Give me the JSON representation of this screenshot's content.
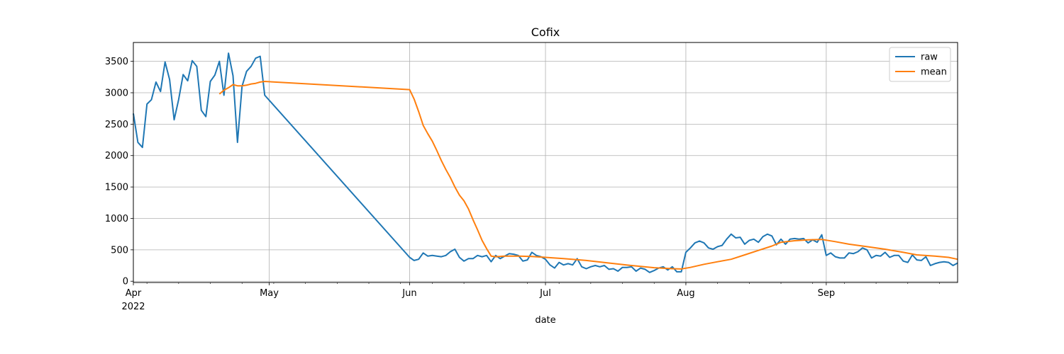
{
  "chart_data": {
    "type": "line",
    "title": "Cofix",
    "xlabel": "date",
    "ylabel": "",
    "xlim": [
      "2022-04-01",
      "2022-09-30"
    ],
    "ylim": [
      -20,
      3800
    ],
    "grid": true,
    "legend": "top-right",
    "x_ticks": [
      {
        "date": "2022-04-01",
        "label": "Apr",
        "sublabel": "2022"
      },
      {
        "date": "2022-05-01",
        "label": "May"
      },
      {
        "date": "2022-06-01",
        "label": "Jun"
      },
      {
        "date": "2022-07-01",
        "label": "Jul"
      },
      {
        "date": "2022-08-01",
        "label": "Aug"
      },
      {
        "date": "2022-09-01",
        "label": "Sep"
      }
    ],
    "y_ticks": [
      0,
      500,
      1000,
      1500,
      2000,
      2500,
      3000,
      3500
    ],
    "series": [
      {
        "name": "raw",
        "color": "#1f77b4",
        "points": [
          [
            "2022-04-01",
            2670
          ],
          [
            "2022-04-02",
            2210
          ],
          [
            "2022-04-03",
            2130
          ],
          [
            "2022-04-04",
            2820
          ],
          [
            "2022-04-05",
            2890
          ],
          [
            "2022-04-06",
            3170
          ],
          [
            "2022-04-07",
            3020
          ],
          [
            "2022-04-08",
            3490
          ],
          [
            "2022-04-09",
            3210
          ],
          [
            "2022-04-10",
            2570
          ],
          [
            "2022-04-11",
            2890
          ],
          [
            "2022-04-12",
            3290
          ],
          [
            "2022-04-13",
            3190
          ],
          [
            "2022-04-14",
            3510
          ],
          [
            "2022-04-15",
            3420
          ],
          [
            "2022-04-16",
            2720
          ],
          [
            "2022-04-17",
            2620
          ],
          [
            "2022-04-18",
            3180
          ],
          [
            "2022-04-19",
            3280
          ],
          [
            "2022-04-20",
            3500
          ],
          [
            "2022-04-21",
            2960
          ],
          [
            "2022-04-22",
            3630
          ],
          [
            "2022-04-23",
            3270
          ],
          [
            "2022-04-24",
            2210
          ],
          [
            "2022-04-25",
            3100
          ],
          [
            "2022-04-26",
            3340
          ],
          [
            "2022-04-27",
            3420
          ],
          [
            "2022-04-28",
            3550
          ],
          [
            "2022-04-29",
            3580
          ],
          [
            "2022-04-30",
            2960
          ],
          [
            "2022-06-01",
            380
          ],
          [
            "2022-06-02",
            330
          ],
          [
            "2022-06-03",
            350
          ],
          [
            "2022-06-04",
            450
          ],
          [
            "2022-06-05",
            400
          ],
          [
            "2022-06-06",
            410
          ],
          [
            "2022-06-07",
            400
          ],
          [
            "2022-06-08",
            390
          ],
          [
            "2022-06-09",
            410
          ],
          [
            "2022-06-10",
            470
          ],
          [
            "2022-06-11",
            510
          ],
          [
            "2022-06-12",
            380
          ],
          [
            "2022-06-13",
            320
          ],
          [
            "2022-06-14",
            360
          ],
          [
            "2022-06-15",
            360
          ],
          [
            "2022-06-16",
            410
          ],
          [
            "2022-06-17",
            390
          ],
          [
            "2022-06-18",
            410
          ],
          [
            "2022-06-19",
            310
          ],
          [
            "2022-06-20",
            410
          ],
          [
            "2022-06-21",
            360
          ],
          [
            "2022-06-22",
            400
          ],
          [
            "2022-06-23",
            440
          ],
          [
            "2022-06-24",
            430
          ],
          [
            "2022-06-25",
            410
          ],
          [
            "2022-06-26",
            320
          ],
          [
            "2022-06-27",
            340
          ],
          [
            "2022-06-28",
            460
          ],
          [
            "2022-06-29",
            410
          ],
          [
            "2022-06-30",
            390
          ],
          [
            "2022-07-01",
            350
          ],
          [
            "2022-07-02",
            260
          ],
          [
            "2022-07-03",
            210
          ],
          [
            "2022-07-04",
            300
          ],
          [
            "2022-07-05",
            260
          ],
          [
            "2022-07-06",
            280
          ],
          [
            "2022-07-07",
            260
          ],
          [
            "2022-07-08",
            360
          ],
          [
            "2022-07-09",
            230
          ],
          [
            "2022-07-10",
            200
          ],
          [
            "2022-07-11",
            230
          ],
          [
            "2022-07-12",
            250
          ],
          [
            "2022-07-13",
            230
          ],
          [
            "2022-07-14",
            250
          ],
          [
            "2022-07-15",
            190
          ],
          [
            "2022-07-16",
            200
          ],
          [
            "2022-07-17",
            160
          ],
          [
            "2022-07-18",
            220
          ],
          [
            "2022-07-19",
            220
          ],
          [
            "2022-07-20",
            230
          ],
          [
            "2022-07-21",
            160
          ],
          [
            "2022-07-22",
            210
          ],
          [
            "2022-07-23",
            190
          ],
          [
            "2022-07-24",
            140
          ],
          [
            "2022-07-25",
            170
          ],
          [
            "2022-07-26",
            210
          ],
          [
            "2022-07-27",
            230
          ],
          [
            "2022-07-28",
            180
          ],
          [
            "2022-07-29",
            230
          ],
          [
            "2022-07-30",
            150
          ],
          [
            "2022-07-31",
            150
          ],
          [
            "2022-08-01",
            460
          ],
          [
            "2022-08-02",
            530
          ],
          [
            "2022-08-03",
            610
          ],
          [
            "2022-08-04",
            640
          ],
          [
            "2022-08-05",
            610
          ],
          [
            "2022-08-06",
            530
          ],
          [
            "2022-08-07",
            510
          ],
          [
            "2022-08-08",
            550
          ],
          [
            "2022-08-09",
            570
          ],
          [
            "2022-08-10",
            670
          ],
          [
            "2022-08-11",
            750
          ],
          [
            "2022-08-12",
            690
          ],
          [
            "2022-08-13",
            700
          ],
          [
            "2022-08-14",
            590
          ],
          [
            "2022-08-15",
            650
          ],
          [
            "2022-08-16",
            670
          ],
          [
            "2022-08-17",
            620
          ],
          [
            "2022-08-18",
            710
          ],
          [
            "2022-08-19",
            750
          ],
          [
            "2022-08-20",
            720
          ],
          [
            "2022-08-21",
            580
          ],
          [
            "2022-08-22",
            670
          ],
          [
            "2022-08-23",
            590
          ],
          [
            "2022-08-24",
            670
          ],
          [
            "2022-08-25",
            680
          ],
          [
            "2022-08-26",
            670
          ],
          [
            "2022-08-27",
            680
          ],
          [
            "2022-08-28",
            610
          ],
          [
            "2022-08-29",
            660
          ],
          [
            "2022-08-30",
            620
          ],
          [
            "2022-08-31",
            740
          ],
          [
            "2022-09-01",
            410
          ],
          [
            "2022-09-02",
            450
          ],
          [
            "2022-09-03",
            390
          ],
          [
            "2022-09-04",
            370
          ],
          [
            "2022-09-05",
            370
          ],
          [
            "2022-09-06",
            450
          ],
          [
            "2022-09-07",
            440
          ],
          [
            "2022-09-08",
            470
          ],
          [
            "2022-09-09",
            530
          ],
          [
            "2022-09-10",
            500
          ],
          [
            "2022-09-11",
            370
          ],
          [
            "2022-09-12",
            410
          ],
          [
            "2022-09-13",
            400
          ],
          [
            "2022-09-14",
            460
          ],
          [
            "2022-09-15",
            380
          ],
          [
            "2022-09-16",
            410
          ],
          [
            "2022-09-17",
            410
          ],
          [
            "2022-09-18",
            320
          ],
          [
            "2022-09-19",
            300
          ],
          [
            "2022-09-20",
            420
          ],
          [
            "2022-09-21",
            340
          ],
          [
            "2022-09-22",
            330
          ],
          [
            "2022-09-23",
            390
          ],
          [
            "2022-09-24",
            250
          ],
          [
            "2022-09-25",
            280
          ],
          [
            "2022-09-26",
            300
          ],
          [
            "2022-09-27",
            310
          ],
          [
            "2022-09-28",
            300
          ],
          [
            "2022-09-29",
            250
          ],
          [
            "2022-09-30",
            290
          ]
        ]
      },
      {
        "name": "mean",
        "color": "#ff7f0e",
        "points": [
          [
            "2022-04-20",
            2980
          ],
          [
            "2022-04-21",
            3040
          ],
          [
            "2022-04-22",
            3080
          ],
          [
            "2022-04-23",
            3130
          ],
          [
            "2022-04-24",
            3110
          ],
          [
            "2022-04-25",
            3110
          ],
          [
            "2022-04-26",
            3120
          ],
          [
            "2022-04-27",
            3140
          ],
          [
            "2022-04-28",
            3150
          ],
          [
            "2022-04-29",
            3170
          ],
          [
            "2022-04-30",
            3180
          ],
          [
            "2022-06-01",
            3050
          ],
          [
            "2022-06-02",
            2900
          ],
          [
            "2022-06-03",
            2700
          ],
          [
            "2022-06-04",
            2480
          ],
          [
            "2022-06-05",
            2350
          ],
          [
            "2022-06-06",
            2230
          ],
          [
            "2022-06-07",
            2080
          ],
          [
            "2022-06-08",
            1920
          ],
          [
            "2022-06-09",
            1780
          ],
          [
            "2022-06-10",
            1650
          ],
          [
            "2022-06-11",
            1500
          ],
          [
            "2022-06-12",
            1370
          ],
          [
            "2022-06-13",
            1280
          ],
          [
            "2022-06-14",
            1150
          ],
          [
            "2022-06-15",
            980
          ],
          [
            "2022-06-16",
            820
          ],
          [
            "2022-06-17",
            650
          ],
          [
            "2022-06-18",
            520
          ],
          [
            "2022-06-19",
            400
          ],
          [
            "2022-06-20",
            390
          ],
          [
            "2022-06-22",
            400
          ],
          [
            "2022-06-25",
            400
          ],
          [
            "2022-06-28",
            395
          ],
          [
            "2022-07-01",
            380
          ],
          [
            "2022-07-05",
            360
          ],
          [
            "2022-07-10",
            330
          ],
          [
            "2022-07-15",
            290
          ],
          [
            "2022-07-20",
            250
          ],
          [
            "2022-07-25",
            215
          ],
          [
            "2022-07-29",
            200
          ],
          [
            "2022-07-31",
            195
          ],
          [
            "2022-08-02",
            220
          ],
          [
            "2022-08-05",
            270
          ],
          [
            "2022-08-08",
            310
          ],
          [
            "2022-08-11",
            350
          ],
          [
            "2022-08-14",
            420
          ],
          [
            "2022-08-17",
            490
          ],
          [
            "2022-08-20",
            560
          ],
          [
            "2022-08-22",
            620
          ],
          [
            "2022-08-25",
            645
          ],
          [
            "2022-08-28",
            660
          ],
          [
            "2022-08-31",
            665
          ],
          [
            "2022-09-03",
            630
          ],
          [
            "2022-09-06",
            590
          ],
          [
            "2022-09-10",
            550
          ],
          [
            "2022-09-14",
            510
          ],
          [
            "2022-09-18",
            460
          ],
          [
            "2022-09-21",
            420
          ],
          [
            "2022-09-25",
            400
          ],
          [
            "2022-09-28",
            380
          ],
          [
            "2022-09-30",
            350
          ]
        ]
      }
    ]
  }
}
